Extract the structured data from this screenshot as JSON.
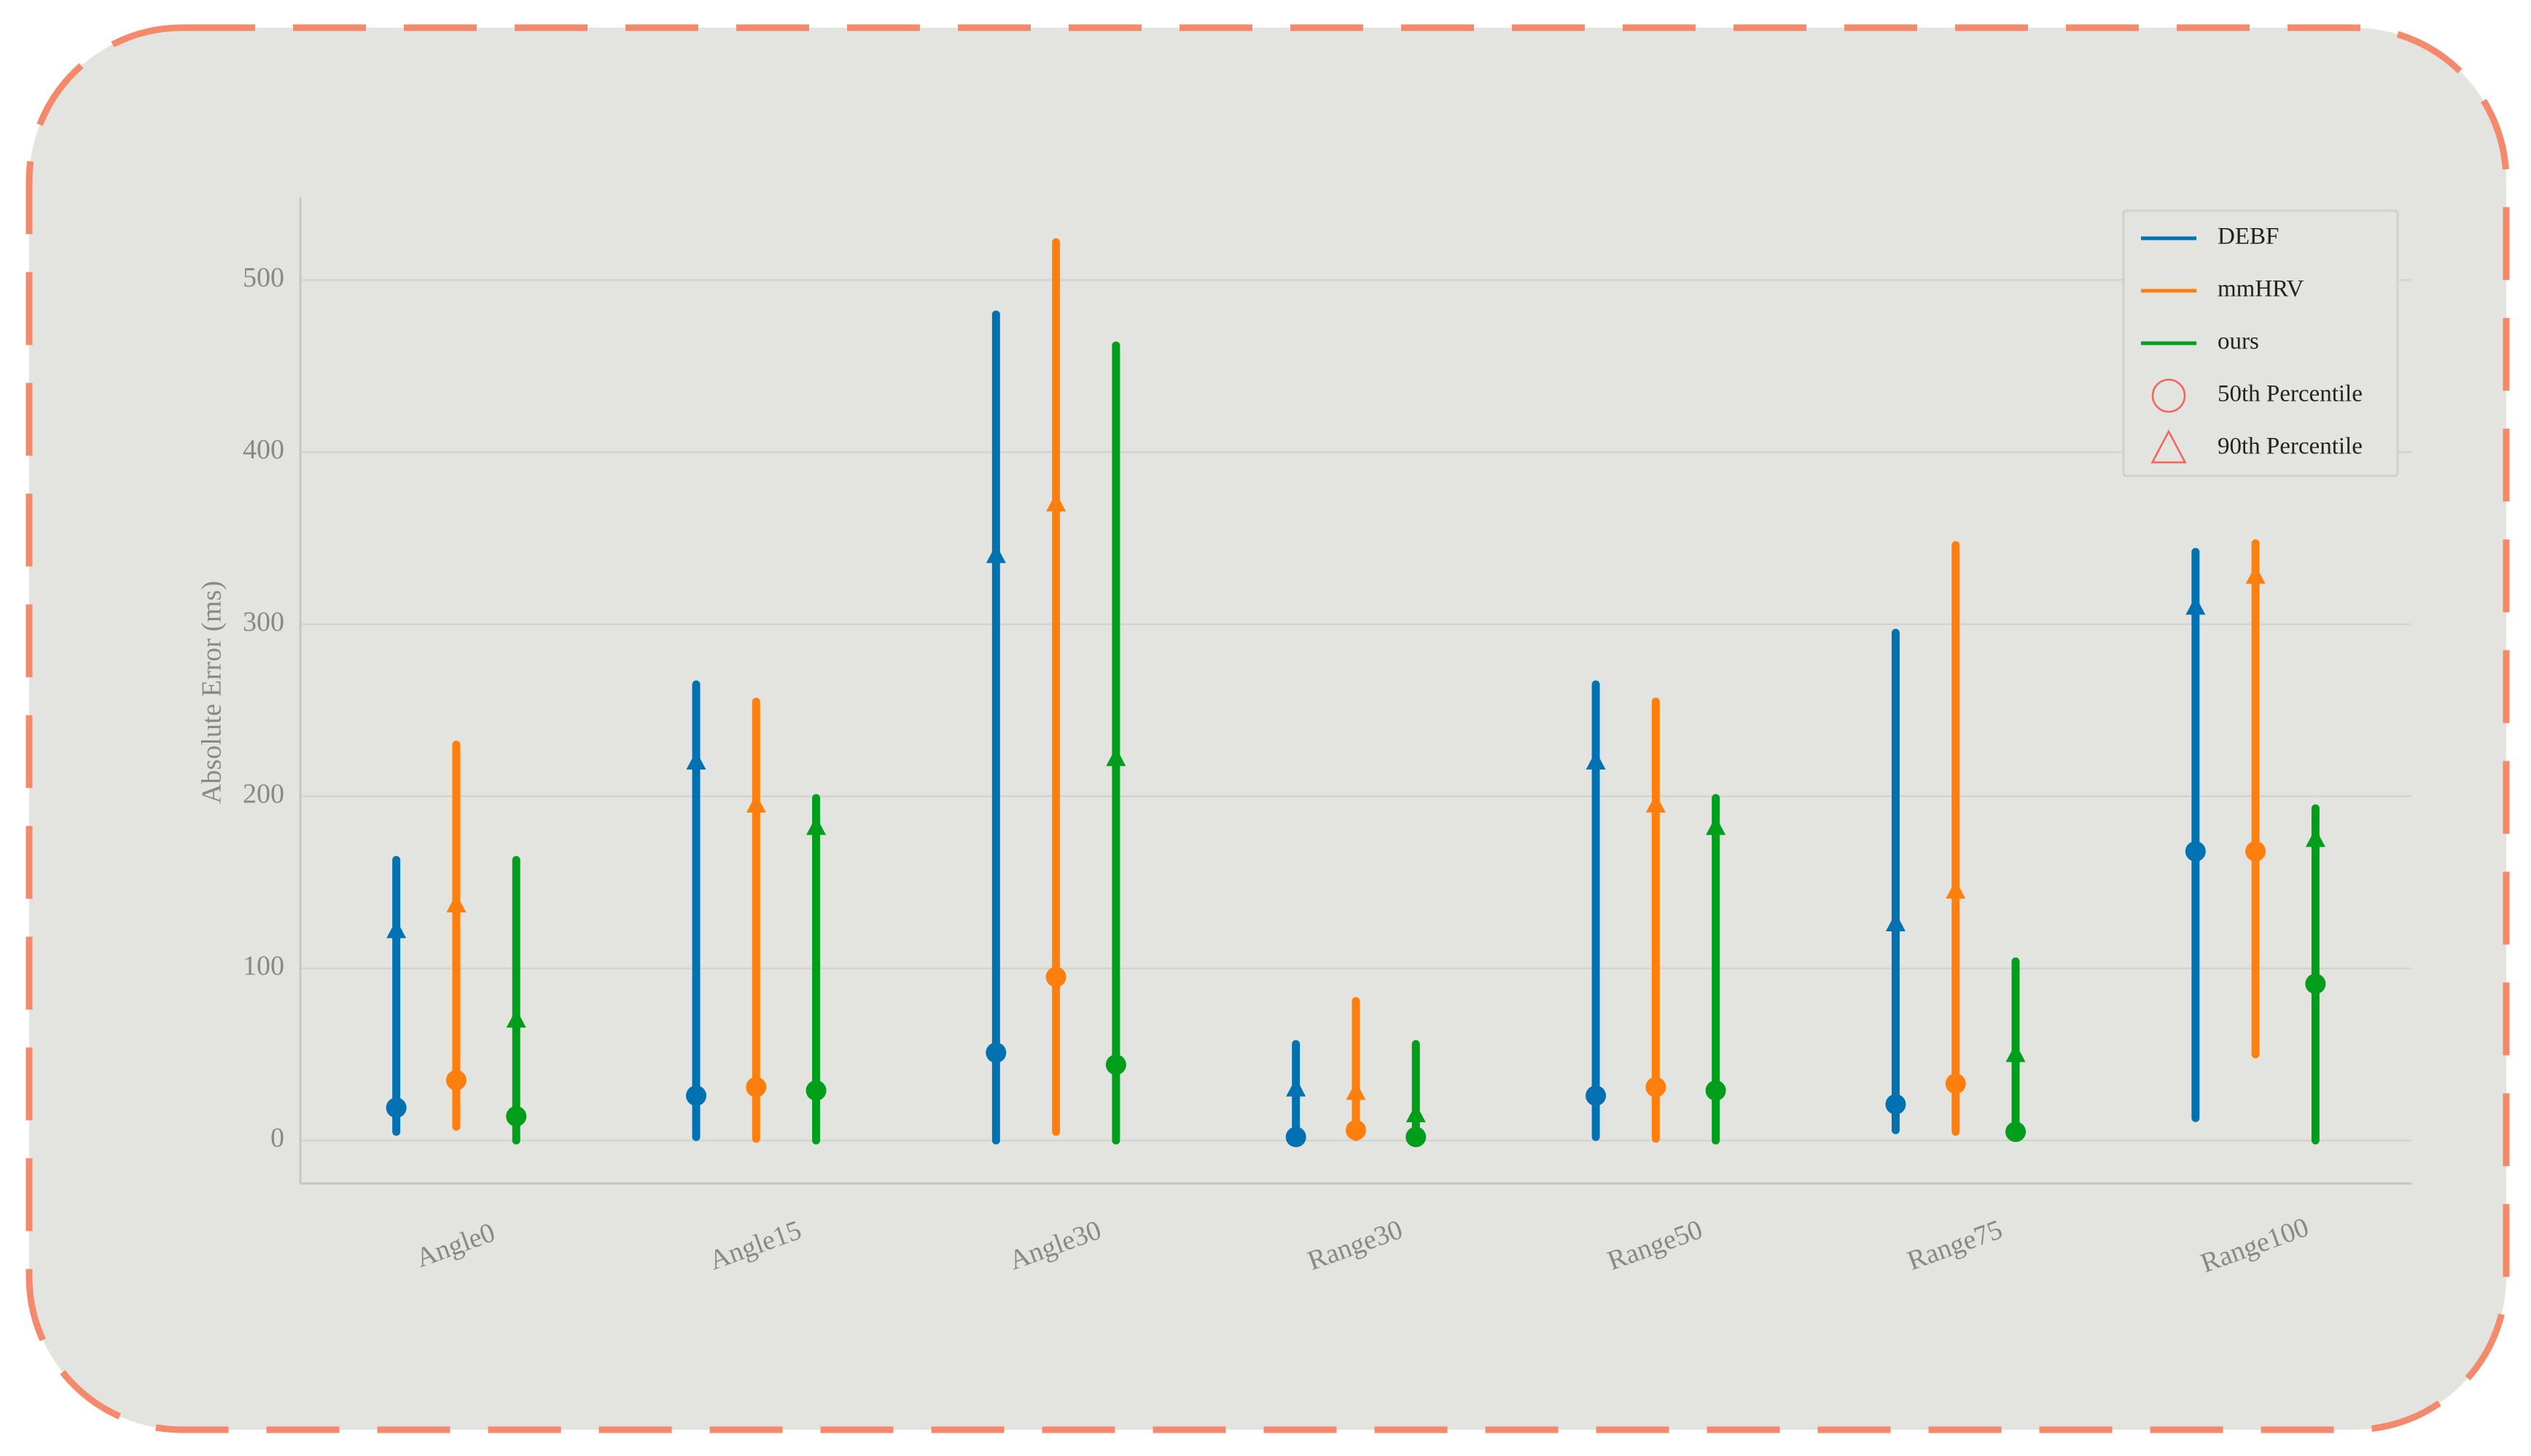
{
  "chart_data": {
    "type": "range",
    "y_label": "Absolute Error (ms)",
    "categories": [
      "Angle0",
      "Angle15",
      "Angle30",
      "Range30",
      "Range50",
      "Range75",
      "Range100"
    ],
    "series": [
      {
        "name": "DEBF",
        "color": "#0072b2",
        "min": [
          5,
          2,
          0,
          1,
          2,
          6,
          13
        ],
        "p50": [
          19,
          26,
          51,
          2,
          26,
          21,
          168
        ],
        "p90": [
          122,
          220,
          340,
          30,
          220,
          126,
          310
        ],
        "max": [
          163,
          265,
          480,
          56,
          265,
          295,
          342
        ]
      },
      {
        "name": "mmHRV",
        "color": "#ff7f0e",
        "min": [
          8,
          1,
          5,
          2,
          1,
          5,
          50
        ],
        "p50": [
          35,
          31,
          95,
          6,
          31,
          33,
          168
        ],
        "p90": [
          137,
          195,
          370,
          28,
          195,
          145,
          328
        ],
        "max": [
          230,
          255,
          522,
          81,
          255,
          346,
          347
        ]
      },
      {
        "name": "ours",
        "color": "#009e1a",
        "min": [
          0,
          0,
          0,
          0,
          0,
          2,
          0
        ],
        "p50": [
          14,
          29,
          44,
          2,
          29,
          5,
          91
        ],
        "p90": [
          70,
          182,
          222,
          15,
          182,
          50,
          175
        ],
        "max": [
          163,
          199,
          462,
          56,
          199,
          104,
          193
        ]
      }
    ],
    "markers": [
      {
        "name": "50th Percentile",
        "shape": "circle"
      },
      {
        "name": "90th Percentile",
        "shape": "triangle"
      }
    ],
    "marker_legend_color": "#f4645c",
    "ylim": [
      -25,
      548
    ],
    "yticks": [
      0,
      100,
      200,
      300,
      400,
      500
    ],
    "grid": true,
    "legend": "upper right"
  }
}
